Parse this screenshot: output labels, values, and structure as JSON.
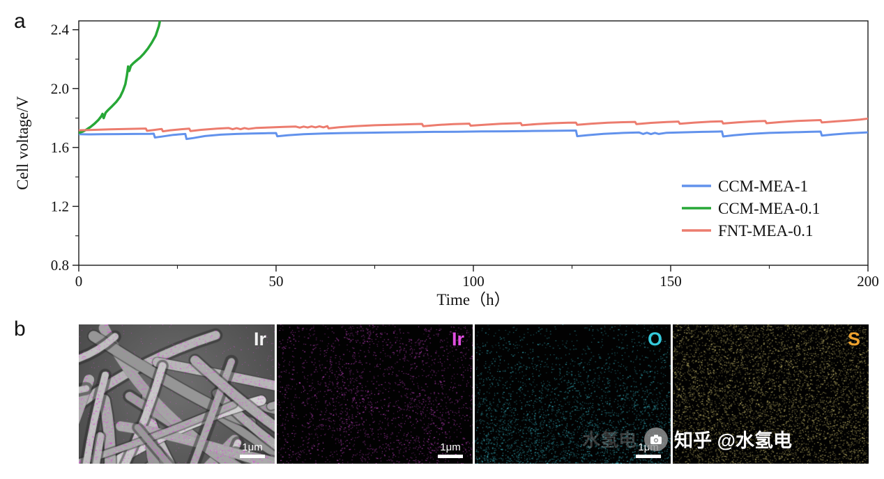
{
  "page": {
    "background": "#ffffff"
  },
  "panel_a": {
    "label": "a"
  },
  "panel_b": {
    "label": "b",
    "tiles": [
      {
        "label": "Ir",
        "label_color": "#f2f2f2",
        "scalebar": "1μm",
        "type": "sem",
        "pattern": "fibers",
        "dot_color": "#e146e1",
        "count": 6000
      },
      {
        "label": "Ir",
        "label_color": "#e14fe1",
        "scalebar": "1μm",
        "type": "dots",
        "pattern": "clustered",
        "dot_color": "#da4ada",
        "count": 1700
      },
      {
        "label": "O",
        "label_color": "#35c9db",
        "scalebar": "1μm",
        "type": "dots",
        "pattern": "bottom-dense",
        "dot_color": "#3cc5d5",
        "count": 5600
      },
      {
        "label": "S",
        "label_color": "#eea22e",
        "scalebar": "",
        "type": "dots",
        "pattern": "uniform",
        "dot_color": "#d8ca74",
        "count": 5200
      }
    ],
    "watermark": {
      "ghost_text": "水氢电",
      "icon": "camera-icon",
      "text": "知乎 @水氢电"
    }
  },
  "chart_data": {
    "type": "line",
    "title": "",
    "xlabel": "Time（h）",
    "ylabel": "Cell voltage/V",
    "xlim": [
      0,
      200
    ],
    "ylim": [
      0.8,
      2.46
    ],
    "xticks": [
      0,
      50,
      100,
      150,
      200
    ],
    "yticks": [
      0.8,
      1.2,
      1.6,
      2.0,
      2.4
    ],
    "grid": false,
    "legend_position": "inside-right",
    "series": [
      {
        "name": "CCM-MEA-1",
        "color": "#6292ec",
        "width": 3,
        "points": [
          [
            0,
            1.69
          ],
          [
            3,
            1.689
          ],
          [
            6,
            1.69
          ],
          [
            10,
            1.691
          ],
          [
            14,
            1.692
          ],
          [
            18,
            1.693
          ],
          [
            19,
            1.694
          ],
          [
            19.3,
            1.668
          ],
          [
            21,
            1.674
          ],
          [
            24,
            1.686
          ],
          [
            27,
            1.692
          ],
          [
            27.3,
            1.658
          ],
          [
            29,
            1.664
          ],
          [
            32,
            1.678
          ],
          [
            36,
            1.687
          ],
          [
            40,
            1.692
          ],
          [
            44,
            1.695
          ],
          [
            48,
            1.697
          ],
          [
            50,
            1.698
          ],
          [
            50.3,
            1.676
          ],
          [
            53,
            1.683
          ],
          [
            57,
            1.69
          ],
          [
            62,
            1.695
          ],
          [
            67,
            1.698
          ],
          [
            72,
            1.7
          ],
          [
            78,
            1.702
          ],
          [
            84,
            1.704
          ],
          [
            90,
            1.706
          ],
          [
            96,
            1.707
          ],
          [
            102,
            1.709
          ],
          [
            108,
            1.71
          ],
          [
            114,
            1.712
          ],
          [
            120,
            1.713
          ],
          [
            126,
            1.715
          ],
          [
            126.3,
            1.677
          ],
          [
            129,
            1.684
          ],
          [
            133,
            1.693
          ],
          [
            138,
            1.699
          ],
          [
            142,
            1.702
          ],
          [
            143,
            1.692
          ],
          [
            144,
            1.7
          ],
          [
            145,
            1.691
          ],
          [
            146,
            1.699
          ],
          [
            147,
            1.692
          ],
          [
            149,
            1.7
          ],
          [
            153,
            1.703
          ],
          [
            158,
            1.706
          ],
          [
            162,
            1.708
          ],
          [
            163,
            1.709
          ],
          [
            163.3,
            1.675
          ],
          [
            166,
            1.683
          ],
          [
            170,
            1.692
          ],
          [
            175,
            1.699
          ],
          [
            180,
            1.703
          ],
          [
            185,
            1.706
          ],
          [
            188,
            1.708
          ],
          [
            188.3,
            1.681
          ],
          [
            191,
            1.688
          ],
          [
            195,
            1.696
          ],
          [
            200,
            1.703
          ]
        ]
      },
      {
        "name": "CCM-MEA-0.1",
        "color": "#27a737",
        "width": 3.5,
        "points": [
          [
            0,
            1.7
          ],
          [
            1,
            1.708
          ],
          [
            2,
            1.722
          ],
          [
            3,
            1.74
          ],
          [
            4,
            1.762
          ],
          [
            5,
            1.788
          ],
          [
            5.7,
            1.812
          ],
          [
            6,
            1.828
          ],
          [
            6.3,
            1.8
          ],
          [
            6.8,
            1.836
          ],
          [
            7.5,
            1.856
          ],
          [
            8.5,
            1.882
          ],
          [
            9.5,
            1.91
          ],
          [
            10.5,
            1.945
          ],
          [
            11.2,
            1.985
          ],
          [
            11.8,
            2.03
          ],
          [
            12.2,
            2.09
          ],
          [
            12.5,
            2.15
          ],
          [
            12.8,
            2.12
          ],
          [
            13.2,
            2.155
          ],
          [
            13.8,
            2.172
          ],
          [
            14.5,
            2.188
          ],
          [
            15.5,
            2.21
          ],
          [
            16.5,
            2.238
          ],
          [
            17.5,
            2.272
          ],
          [
            18.5,
            2.312
          ],
          [
            19.5,
            2.36
          ],
          [
            20.3,
            2.425
          ],
          [
            21,
            2.52
          ]
        ]
      },
      {
        "name": "FNT-MEA-0.1",
        "color": "#ec7c6e",
        "width": 3,
        "points": [
          [
            0,
            1.717
          ],
          [
            4,
            1.72
          ],
          [
            8,
            1.723
          ],
          [
            12,
            1.726
          ],
          [
            16,
            1.728
          ],
          [
            17,
            1.729
          ],
          [
            17.3,
            1.713
          ],
          [
            19,
            1.719
          ],
          [
            21,
            1.726
          ],
          [
            21.3,
            1.71
          ],
          [
            23,
            1.716
          ],
          [
            26,
            1.724
          ],
          [
            28,
            1.728
          ],
          [
            28.3,
            1.712
          ],
          [
            31,
            1.72
          ],
          [
            35,
            1.728
          ],
          [
            38,
            1.732
          ],
          [
            39,
            1.724
          ],
          [
            40,
            1.731
          ],
          [
            41,
            1.724
          ],
          [
            42,
            1.732
          ],
          [
            43,
            1.726
          ],
          [
            45,
            1.733
          ],
          [
            48,
            1.736
          ],
          [
            52,
            1.74
          ],
          [
            55,
            1.742
          ],
          [
            56,
            1.735
          ],
          [
            57,
            1.742
          ],
          [
            58,
            1.736
          ],
          [
            59,
            1.743
          ],
          [
            60,
            1.737
          ],
          [
            61,
            1.744
          ],
          [
            62,
            1.737
          ],
          [
            63,
            1.745
          ],
          [
            63.3,
            1.73
          ],
          [
            66,
            1.738
          ],
          [
            70,
            1.745
          ],
          [
            75,
            1.751
          ],
          [
            80,
            1.755
          ],
          [
            85,
            1.759
          ],
          [
            87,
            1.76
          ],
          [
            87.3,
            1.745
          ],
          [
            91,
            1.753
          ],
          [
            95,
            1.759
          ],
          [
            99,
            1.762
          ],
          [
            99.3,
            1.748
          ],
          [
            103,
            1.755
          ],
          [
            107,
            1.761
          ],
          [
            111,
            1.765
          ],
          [
            112,
            1.766
          ],
          [
            112.3,
            1.751
          ],
          [
            116,
            1.759
          ],
          [
            120,
            1.765
          ],
          [
            124,
            1.768
          ],
          [
            126,
            1.769
          ],
          [
            126.3,
            1.754
          ],
          [
            130,
            1.762
          ],
          [
            134,
            1.768
          ],
          [
            138,
            1.772
          ],
          [
            141,
            1.774
          ],
          [
            141.3,
            1.759
          ],
          [
            145,
            1.767
          ],
          [
            149,
            1.773
          ],
          [
            152,
            1.776
          ],
          [
            152.3,
            1.761
          ],
          [
            156,
            1.769
          ],
          [
            160,
            1.775
          ],
          [
            163,
            1.778
          ],
          [
            163.3,
            1.763
          ],
          [
            167,
            1.771
          ],
          [
            171,
            1.777
          ],
          [
            174,
            1.78
          ],
          [
            174.3,
            1.765
          ],
          [
            178,
            1.773
          ],
          [
            182,
            1.78
          ],
          [
            186,
            1.784
          ],
          [
            188,
            1.786
          ],
          [
            188.3,
            1.77
          ],
          [
            192,
            1.778
          ],
          [
            195,
            1.783
          ],
          [
            198,
            1.79
          ],
          [
            200,
            1.796
          ]
        ]
      }
    ]
  }
}
